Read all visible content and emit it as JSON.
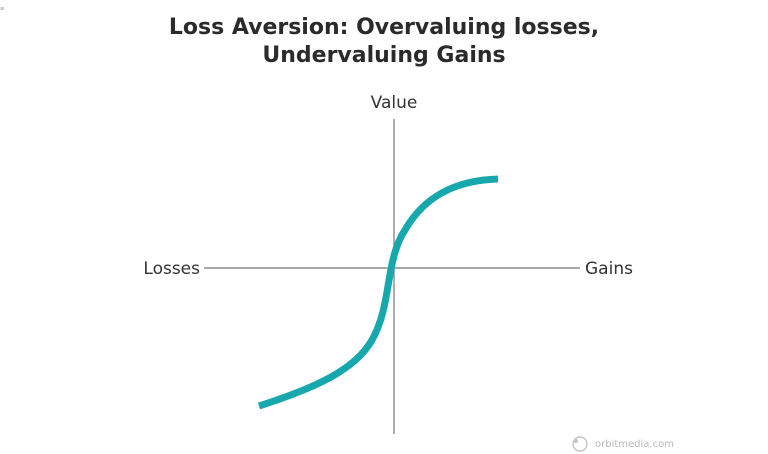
{
  "title": {
    "line1": "Loss Aversion: Overvaluing losses,",
    "line2": "Undervaluing Gains"
  },
  "axes": {
    "y_label": "Value",
    "x_negative_label": "Losses",
    "x_positive_label": "Gains"
  },
  "curve": {
    "color": "#17a8ad",
    "shape": "s-curve-value-function"
  },
  "axis_color": "#8a8a8a",
  "watermark": {
    "text": "orbitmedia.com",
    "icon": "orbit-logo-icon"
  }
}
